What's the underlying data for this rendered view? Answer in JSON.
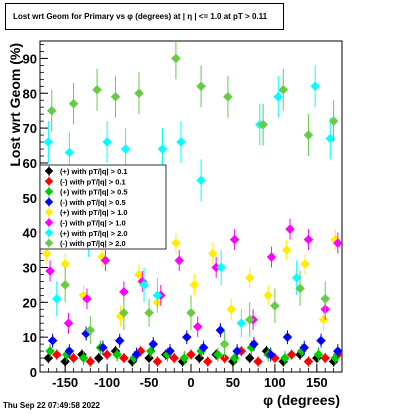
{
  "header": {
    "title": "Lost wrt Geom for Primary vs φ (degrees) at | η | <= 1.0 at pT > 0.11"
  },
  "footer": {
    "timestamp": "Thu Sep 22 07:49:58 2022"
  },
  "chart_data": {
    "type": "scatter",
    "title": "Lost wrt Geom for Primary vs φ (degrees) at | η | <= 1.0 at pT > 0.11",
    "xlabel": "φ (degrees)",
    "ylabel": "Lost wrt Geom (%)",
    "xlim": [
      -180,
      180
    ],
    "ylim": [
      0,
      95
    ],
    "xticks": [
      -150,
      -100,
      -50,
      0,
      50,
      100,
      150
    ],
    "yticks": [
      0,
      10,
      20,
      30,
      40,
      50,
      60,
      70,
      80,
      90
    ],
    "grid": true,
    "legend_position": "left",
    "series": [
      {
        "name": "(+) with pT/|q| > 0.1",
        "color": "#000000",
        "shape": "diamond",
        "points": [
          [
            -170,
            4,
            1.5
          ],
          [
            -150,
            3,
            1.5
          ],
          [
            -130,
            5,
            1.5
          ],
          [
            -110,
            4,
            1.5
          ],
          [
            -90,
            6,
            1.5
          ],
          [
            -70,
            3,
            1.5
          ],
          [
            -50,
            4,
            1.5
          ],
          [
            -30,
            5,
            1.5
          ],
          [
            -10,
            3,
            1.5
          ],
          [
            10,
            4,
            1.5
          ],
          [
            30,
            5,
            1.5
          ],
          [
            50,
            3,
            1.5
          ],
          [
            70,
            4,
            1.5
          ],
          [
            90,
            6,
            1.5
          ],
          [
            110,
            3,
            1.5
          ],
          [
            130,
            5,
            1.5
          ],
          [
            150,
            4,
            1.5
          ],
          [
            170,
            3,
            1.5
          ]
        ]
      },
      {
        "name": "(-) with pT/|q| > 0.1",
        "color": "#ff0000",
        "shape": "diamond",
        "points": [
          [
            -160,
            5,
            1.5
          ],
          [
            -140,
            4,
            1.5
          ],
          [
            -120,
            3,
            1.5
          ],
          [
            -100,
            5,
            1.5
          ],
          [
            -80,
            4,
            1.5
          ],
          [
            -60,
            6,
            1.5
          ],
          [
            -40,
            3,
            1.5
          ],
          [
            -20,
            4,
            1.5
          ],
          [
            0,
            5,
            1.5
          ],
          [
            20,
            3,
            1.5
          ],
          [
            40,
            4,
            1.5
          ],
          [
            60,
            6,
            1.5
          ],
          [
            80,
            3,
            1.5
          ],
          [
            100,
            4,
            1.5
          ],
          [
            120,
            5,
            1.5
          ],
          [
            140,
            3,
            1.5
          ],
          [
            160,
            4,
            1.5
          ],
          [
            175,
            5,
            1.5
          ]
        ]
      },
      {
        "name": "(+) with pT/|q| > 0.5",
        "color": "#00cc00",
        "shape": "diamond",
        "points": [
          [
            -168,
            6,
            2
          ],
          [
            -148,
            5,
            2
          ],
          [
            -128,
            4,
            2
          ],
          [
            -108,
            7,
            2
          ],
          [
            -88,
            5,
            2
          ],
          [
            -68,
            4,
            2
          ],
          [
            -48,
            6,
            2
          ],
          [
            -28,
            5,
            2
          ],
          [
            -8,
            4,
            2
          ],
          [
            12,
            6,
            2
          ],
          [
            32,
            5,
            2
          ],
          [
            52,
            4,
            2
          ],
          [
            72,
            7,
            2
          ],
          [
            92,
            5,
            2
          ],
          [
            112,
            4,
            2
          ],
          [
            132,
            6,
            2
          ],
          [
            152,
            5,
            2
          ],
          [
            172,
            4,
            2
          ]
        ]
      },
      {
        "name": "(-) with pT/|q| > 0.5",
        "color": "#0000ff",
        "shape": "diamond",
        "points": [
          [
            -165,
            9,
            2
          ],
          [
            -145,
            6,
            2
          ],
          [
            -125,
            11,
            2
          ],
          [
            -105,
            7,
            2
          ],
          [
            -85,
            9,
            2
          ],
          [
            -65,
            5,
            2
          ],
          [
            -45,
            8,
            2
          ],
          [
            -25,
            6,
            2
          ],
          [
            -5,
            10,
            2
          ],
          [
            15,
            7,
            2
          ],
          [
            35,
            12,
            2
          ],
          [
            55,
            6,
            2
          ],
          [
            75,
            8,
            2
          ],
          [
            95,
            5,
            2
          ],
          [
            115,
            10,
            2
          ],
          [
            135,
            7,
            2
          ],
          [
            155,
            9,
            2
          ],
          [
            175,
            6,
            2
          ]
        ]
      },
      {
        "name": "(+) with pT/|q| > 1.0",
        "color": "#ffee00",
        "shape": "diamond",
        "points": [
          [
            -172,
            34,
            3
          ],
          [
            -150,
            31,
            3
          ],
          [
            -128,
            22,
            3
          ],
          [
            -106,
            33,
            3
          ],
          [
            -84,
            16,
            3
          ],
          [
            -62,
            28,
            3
          ],
          [
            -40,
            20,
            3
          ],
          [
            -18,
            37,
            3
          ],
          [
            4,
            25,
            3
          ],
          [
            26,
            34,
            3
          ],
          [
            48,
            18,
            3
          ],
          [
            70,
            27,
            3
          ],
          [
            92,
            22,
            3
          ],
          [
            114,
            35,
            3
          ],
          [
            136,
            31,
            3
          ],
          [
            158,
            15,
            3
          ],
          [
            172,
            38,
            3
          ]
        ]
      },
      {
        "name": "(-) with pT/|q| > 1.0",
        "color": "#ff00ff",
        "shape": "diamond",
        "points": [
          [
            -168,
            29,
            3
          ],
          [
            -146,
            14,
            3
          ],
          [
            -124,
            21,
            3
          ],
          [
            -102,
            32,
            3
          ],
          [
            -80,
            23,
            3
          ],
          [
            -58,
            26,
            3
          ],
          [
            -36,
            22,
            3
          ],
          [
            -14,
            32,
            3
          ],
          [
            8,
            13,
            3
          ],
          [
            30,
            30,
            3
          ],
          [
            52,
            38,
            3
          ],
          [
            74,
            15,
            3
          ],
          [
            96,
            33,
            3
          ],
          [
            118,
            41,
            3
          ],
          [
            140,
            38,
            3
          ],
          [
            160,
            18,
            3
          ],
          [
            175,
            37,
            3
          ]
        ]
      },
      {
        "name": "(+) with pT/|q| > 2.0",
        "color": "#00ffff",
        "shape": "diamond",
        "points": [
          [
            -170,
            66,
            6
          ],
          [
            -145,
            63,
            6
          ],
          [
            -122,
            38,
            5
          ],
          [
            -100,
            66,
            6
          ],
          [
            -78,
            64,
            6
          ],
          [
            -56,
            25,
            5
          ],
          [
            -34,
            64,
            6
          ],
          [
            -12,
            66,
            6
          ],
          [
            12,
            55,
            6
          ],
          [
            36,
            30,
            5
          ],
          [
            60,
            14,
            4
          ],
          [
            82,
            71,
            6
          ],
          [
            104,
            79,
            6
          ],
          [
            126,
            27,
            5
          ],
          [
            148,
            82,
            6
          ],
          [
            166,
            67,
            6
          ],
          [
            -160,
            21,
            5
          ],
          [
            -40,
            22,
            5
          ]
        ]
      },
      {
        "name": "(-) with pT/|q| > 2.0",
        "color": "#66cc44",
        "shape": "diamond",
        "points": [
          [
            -166,
            75,
            6
          ],
          [
            -140,
            77,
            6
          ],
          [
            -112,
            81,
            6
          ],
          [
            -90,
            79,
            6
          ],
          [
            -62,
            80,
            6
          ],
          [
            -18,
            90,
            6
          ],
          [
            12,
            82,
            6
          ],
          [
            44,
            79,
            6
          ],
          [
            86,
            71,
            6
          ],
          [
            110,
            81,
            6
          ],
          [
            140,
            68,
            6
          ],
          [
            170,
            72,
            6
          ],
          [
            -150,
            25,
            5
          ],
          [
            -120,
            12,
            4
          ],
          [
            -80,
            17,
            5
          ],
          [
            -50,
            17,
            4
          ],
          [
            0,
            17,
            5
          ],
          [
            40,
            8,
            4
          ],
          [
            70,
            15,
            5
          ],
          [
            100,
            19,
            5
          ],
          [
            130,
            24,
            5
          ],
          [
            160,
            21,
            5
          ]
        ]
      }
    ]
  }
}
